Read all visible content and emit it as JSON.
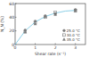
{
  "chart_data": {
    "type": "scatter",
    "x_label": "Shear rate (s⁻¹)",
    "y_label": "N_N (%)",
    "xlim": [
      0,
      3.5
    ],
    "xticks": [
      0,
      1,
      2,
      3
    ],
    "ylim": [
      0,
      60
    ],
    "yticks": [
      0,
      20,
      40,
      60
    ],
    "legend": "lower right",
    "series": [
      {
        "type": "line",
        "color": "#7ec8e3",
        "line_style": "solid",
        "x": [
          0,
          0.5,
          1,
          1.5,
          2,
          2.5,
          3
        ],
        "values": [
          0,
          20,
          33,
          41,
          46,
          49,
          50
        ]
      },
      {
        "name": "25.0 °C",
        "color": "#7a7a7a",
        "marker": "circle",
        "x": [
          0.5,
          1,
          1.5,
          2,
          3
        ],
        "values": [
          21,
          34,
          42,
          45,
          51
        ]
      },
      {
        "name": "30.0 °C",
        "color": "#7a7a7a",
        "marker": "square",
        "x": [
          0.5,
          1,
          1.5,
          2,
          3
        ],
        "values": [
          19,
          32,
          40,
          47,
          50
        ]
      },
      {
        "name": "35.0 °C",
        "color": "#7a7a7a",
        "marker": "triangle",
        "x": [
          0.5,
          1,
          1.5,
          2,
          3
        ],
        "values": [
          18,
          30,
          41,
          44,
          49
        ]
      }
    ]
  }
}
